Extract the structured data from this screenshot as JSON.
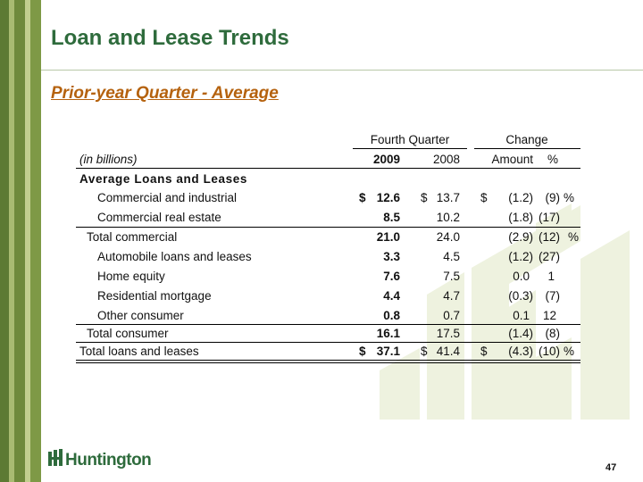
{
  "title": "Loan and Lease Trends",
  "subtitle": "Prior-year Quarter - Average",
  "table": {
    "group_headers": {
      "fourth_quarter": "Fourth Quarter",
      "change": "Change"
    },
    "unit_label": "(in billions)",
    "col_2009": "2009",
    "col_2008": "2008",
    "col_amount": "Amount",
    "col_pct": "%",
    "section_label": "Average Loans and Leases",
    "rows": [
      {
        "label": "Commercial and industrial",
        "d2009": "$",
        "v2009": "12.6",
        "d2008": "$",
        "v2008": "13.7",
        "damt": "$",
        "amount": "(1.2)",
        "pct": "(9)",
        "pctsign": "%"
      },
      {
        "label": "Commercial real estate",
        "d2009": "",
        "v2009": "8.5",
        "d2008": "",
        "v2008": "10.2",
        "damt": "",
        "amount": "(1.8)",
        "pct": "(17)",
        "pctsign": ""
      },
      {
        "label": "Total commercial",
        "d2009": "",
        "v2009": "21.0",
        "d2008": "",
        "v2008": "24.0",
        "damt": "",
        "amount": "(2.9)",
        "pct": "(12)",
        "pctsign": "%"
      },
      {
        "label": "Automobile loans and leases",
        "d2009": "",
        "v2009": "3.3",
        "d2008": "",
        "v2008": "4.5",
        "damt": "",
        "amount": "(1.2)",
        "pct": "(27)",
        "pctsign": ""
      },
      {
        "label": "Home equity",
        "d2009": "",
        "v2009": "7.6",
        "d2008": "",
        "v2008": "7.5",
        "damt": "",
        "amount": "0.0",
        "pct": "1",
        "pctsign": ""
      },
      {
        "label": "Residential mortgage",
        "d2009": "",
        "v2009": "4.4",
        "d2008": "",
        "v2008": "4.7",
        "damt": "",
        "amount": "(0.3)",
        "pct": "(7)",
        "pctsign": ""
      },
      {
        "label": "Other consumer",
        "d2009": "",
        "v2009": "0.8",
        "d2008": "",
        "v2008": "0.7",
        "damt": "",
        "amount": "0.1",
        "pct": "12",
        "pctsign": ""
      },
      {
        "label": "Total consumer",
        "d2009": "",
        "v2009": "16.1",
        "d2008": "",
        "v2008": "17.5",
        "damt": "",
        "amount": "(1.4)",
        "pct": "(8)",
        "pctsign": ""
      },
      {
        "label": "Total loans and leases",
        "d2009": "$",
        "v2009": "37.1",
        "d2008": "$",
        "v2008": "41.4",
        "damt": "$",
        "amount": "(4.3)",
        "pct": "(10)",
        "pctsign": "%"
      }
    ]
  },
  "logo_text": "Huntington",
  "page_number": "47",
  "colors": {
    "brand_green": "#2e6b3c",
    "subtitle_orange": "#b5620e",
    "art_tint": "#eef2df"
  }
}
